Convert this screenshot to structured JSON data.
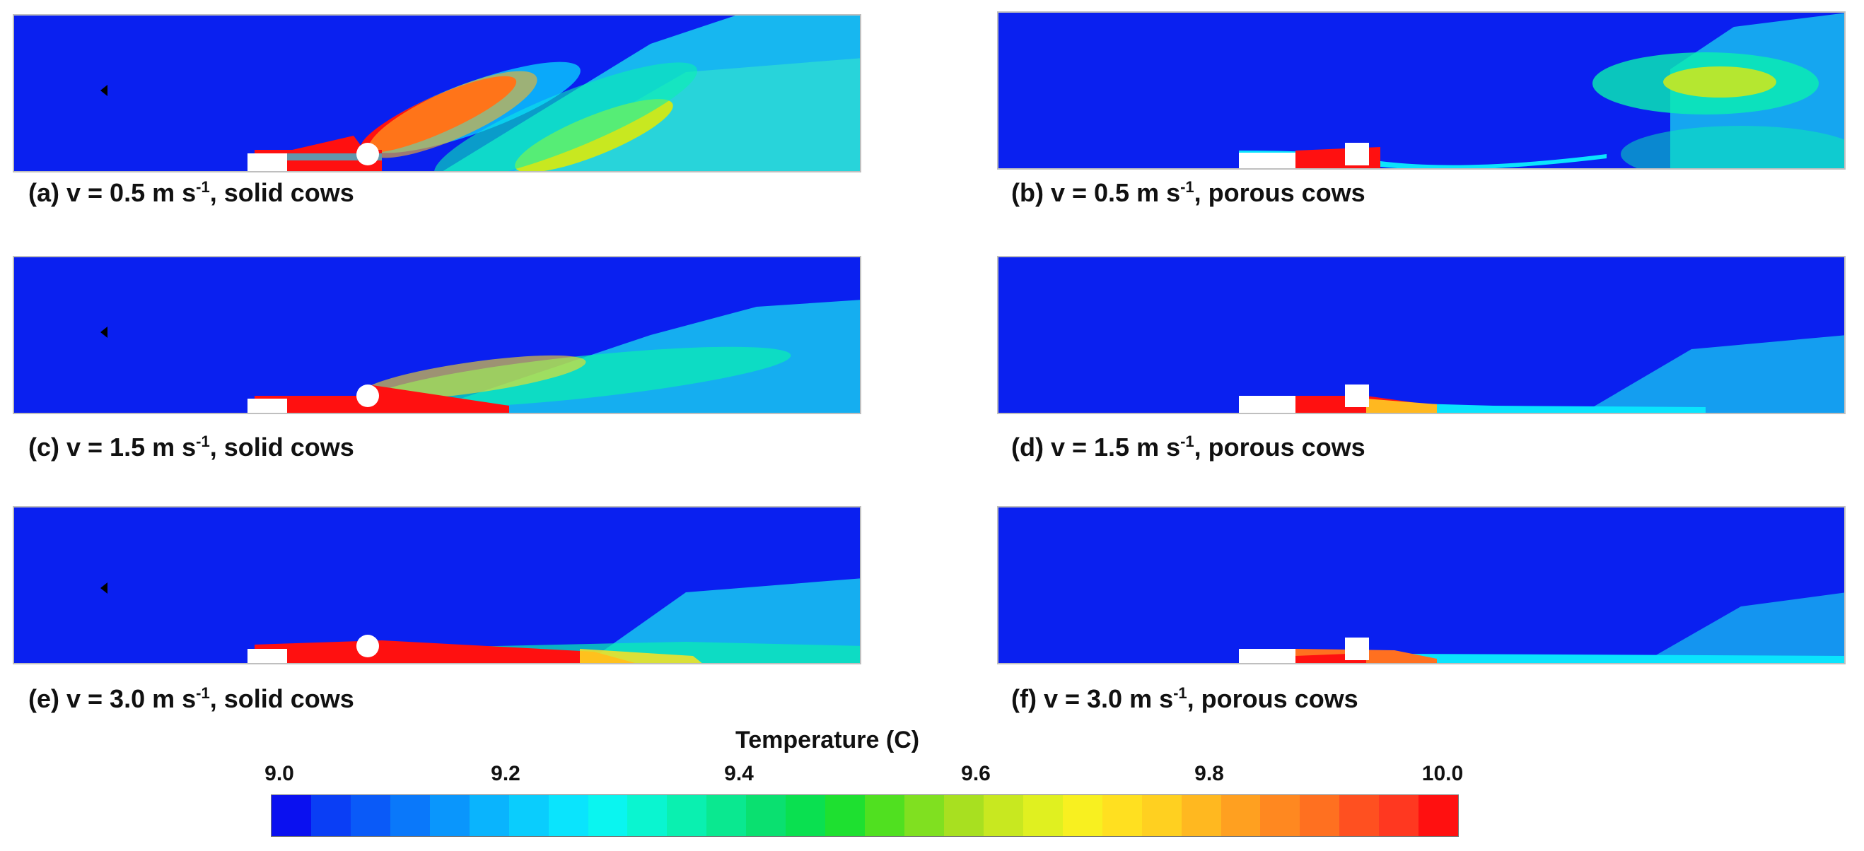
{
  "panels": [
    {
      "id": "a",
      "label": "(a) v = 0.5 m s",
      "exp": "-1",
      "suffix": ", solid cows"
    },
    {
      "id": "b",
      "label": "(b) v = 0.5 m s",
      "exp": "-1",
      "suffix": ", porous cows"
    },
    {
      "id": "c",
      "label": "(c) v = 1.5 m s",
      "exp": "-1",
      "suffix": ", solid cows"
    },
    {
      "id": "d",
      "label": "(d) v = 1.5 m s",
      "exp": "-1",
      "suffix": ", porous cows"
    },
    {
      "id": "e",
      "label": "(e) v = 3.0 m s",
      "exp": "-1",
      "suffix": ", solid cows"
    },
    {
      "id": "f",
      "label": "(f) v = 3.0 m s",
      "exp": "-1",
      "suffix": ", porous cows"
    }
  ],
  "legend": {
    "title": "Temperature (C)",
    "ticks": [
      "9.0",
      "9.2",
      "9.4",
      "9.6",
      "9.8",
      "10.0"
    ],
    "min": 9.0,
    "max": 10.0,
    "colors": [
      "#0a10f0",
      "#0a3ef5",
      "#0a5af8",
      "#0a78fa",
      "#0a96fc",
      "#0ab4fd",
      "#0acdfd",
      "#0ae4fd",
      "#0af5f0",
      "#0af5d0",
      "#0af0b0",
      "#0ae890",
      "#0ae070",
      "#0ae050",
      "#1ee030",
      "#50e020",
      "#80e020",
      "#a8e020",
      "#c8e820",
      "#e0f020",
      "#f8f020",
      "#ffe020",
      "#ffd020",
      "#ffb820",
      "#ffa020",
      "#ff8820",
      "#ff7020",
      "#ff5020",
      "#ff3820",
      "#ff1010"
    ]
  }
}
